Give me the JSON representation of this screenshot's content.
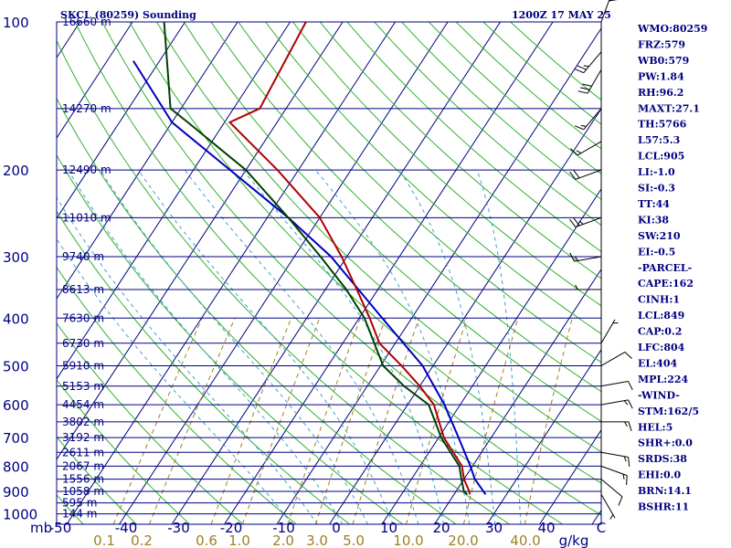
{
  "header": {
    "station": "SKCL (80259) Sounding",
    "time": "1200Z 17 MAY 25"
  },
  "indices": [
    "WMO:80259",
    "FRZ:579",
    "WB0:579",
    "PW:1.84",
    "RH:96.2",
    "MAXT:27.1",
    "TH:5766",
    "L57:5.3",
    "LCL:905",
    "LI:-1.0",
    "SI:-0.3",
    "TT:44",
    "KI:38",
    "SW:210",
    "EI:-0.5",
    "-PARCEL-",
    "CAPE:162",
    "CINH:1",
    "LCL:849",
    "CAP:0.2",
    "LFC:804",
    "EL:404",
    "MPL:224",
    "-WIND-",
    "STM:162/5",
    "HEL:5",
    "SHR+:0.0",
    "SRDS:38",
    "EHI:0.0",
    "BRN:14.1",
    "BSHR:11"
  ],
  "axes": {
    "pressure_unit": "mb",
    "temp_unit": "C",
    "mixing_ratio_unit": "g/kg"
  },
  "colors": {
    "frame": "#000080",
    "isotherm": "#000080",
    "isobar": "#000080",
    "dry_adiabat": "#30b030",
    "moist_adiabat": "#40a0d0",
    "mixing_ratio": "#a08020",
    "temperature": "#b00000",
    "dewpoint": "#004000",
    "parcel": "#0000c0"
  },
  "chart_data": {
    "type": "skew-t log-p sounding",
    "pressure_ticks": [
      "100",
      "200",
      "300",
      "400",
      "500",
      "600",
      "700",
      "800",
      "900",
      "1000"
    ],
    "temperature_ticks": [
      "-50",
      "-40",
      "-30",
      "-20",
      "-10",
      "0",
      "10",
      "20",
      "30",
      "40",
      "C"
    ],
    "mixing_ratio_ticks": [
      "0.1",
      "0.2",
      "0.6",
      "1.0",
      "2.0",
      "3.0",
      "5.0",
      "10.0",
      "20.0",
      "40.0"
    ],
    "height_levels": [
      {
        "p": 100,
        "label": "16660 m"
      },
      {
        "p": 150,
        "label": "14270 m"
      },
      {
        "p": 200,
        "label": "12490 m"
      },
      {
        "p": 250,
        "label": "11010 m"
      },
      {
        "p": 300,
        "label": "9740 m"
      },
      {
        "p": 350,
        "label": "8613 m"
      },
      {
        "p": 400,
        "label": "7630 m"
      },
      {
        "p": 450,
        "label": "6730 m"
      },
      {
        "p": 500,
        "label": "5910 m"
      },
      {
        "p": 550,
        "label": "5153 m"
      },
      {
        "p": 600,
        "label": "4454 m"
      },
      {
        "p": 650,
        "label": "3802 m"
      },
      {
        "p": 700,
        "label": "3192 m"
      },
      {
        "p": 750,
        "label": "2611 m"
      },
      {
        "p": 800,
        "label": "2067 m"
      },
      {
        "p": 850,
        "label": "1556 m"
      },
      {
        "p": 900,
        "label": "1058 m"
      },
      {
        "p": 950,
        "label": "595 m"
      },
      {
        "p": 1000,
        "label": "144 m"
      }
    ],
    "temperature_profile": [
      {
        "p": 913,
        "t": 23
      },
      {
        "p": 900,
        "t": 22.5
      },
      {
        "p": 850,
        "t": 20
      },
      {
        "p": 800,
        "t": 18
      },
      {
        "p": 700,
        "t": 11
      },
      {
        "p": 600,
        "t": 5
      },
      {
        "p": 550,
        "t": 0
      },
      {
        "p": 500,
        "t": -6
      },
      {
        "p": 450,
        "t": -13
      },
      {
        "p": 400,
        "t": -18
      },
      {
        "p": 350,
        "t": -24
      },
      {
        "p": 300,
        "t": -31
      },
      {
        "p": 250,
        "t": -40
      },
      {
        "p": 200,
        "t": -54
      },
      {
        "p": 160,
        "t": -69
      },
      {
        "p": 150,
        "t": -65
      },
      {
        "p": 100,
        "t": -67
      }
    ],
    "dewpoint_profile": [
      {
        "p": 913,
        "t": 22.5
      },
      {
        "p": 900,
        "t": 21.5
      },
      {
        "p": 850,
        "t": 19.5
      },
      {
        "p": 800,
        "t": 17.5
      },
      {
        "p": 700,
        "t": 10.5
      },
      {
        "p": 600,
        "t": 4
      },
      {
        "p": 550,
        "t": -3
      },
      {
        "p": 500,
        "t": -9.5
      },
      {
        "p": 450,
        "t": -14
      },
      {
        "p": 400,
        "t": -19
      },
      {
        "p": 350,
        "t": -26
      },
      {
        "p": 300,
        "t": -35
      },
      {
        "p": 250,
        "t": -46
      },
      {
        "p": 200,
        "t": -60
      },
      {
        "p": 160,
        "t": -77
      },
      {
        "p": 150,
        "t": -82
      },
      {
        "p": 100,
        "t": -94
      }
    ],
    "parcel_profile": [
      {
        "p": 913,
        "t": 26
      },
      {
        "p": 849,
        "t": 22
      },
      {
        "p": 800,
        "t": 19.6
      },
      {
        "p": 700,
        "t": 13.8
      },
      {
        "p": 600,
        "t": 7
      },
      {
        "p": 500,
        "t": -2
      },
      {
        "p": 404,
        "t": -15
      },
      {
        "p": 300,
        "t": -33
      },
      {
        "p": 250,
        "t": -46
      },
      {
        "p": 200,
        "t": -63
      },
      {
        "p": 160,
        "t": -80
      },
      {
        "p": 120,
        "t": -95
      }
    ],
    "wind_barbs": [
      {
        "p": 913,
        "dir": 150,
        "spd": 5
      },
      {
        "p": 850,
        "dir": 130,
        "spd": 10
      },
      {
        "p": 800,
        "dir": 110,
        "spd": 15
      },
      {
        "p": 750,
        "dir": 100,
        "spd": 15
      },
      {
        "p": 650,
        "dir": 90,
        "spd": 15
      },
      {
        "p": 600,
        "dir": 80,
        "spd": 15
      },
      {
        "p": 550,
        "dir": 80,
        "spd": 10
      },
      {
        "p": 500,
        "dir": 60,
        "spd": 10
      },
      {
        "p": 450,
        "dir": 30,
        "spd": 5
      },
      {
        "p": 350,
        "dir": 270,
        "spd": 5
      },
      {
        "p": 300,
        "dir": 260,
        "spd": 15
      },
      {
        "p": 250,
        "dir": 250,
        "spd": 25
      },
      {
        "p": 200,
        "dir": 250,
        "spd": 20
      },
      {
        "p": 175,
        "dir": 240,
        "spd": 15
      },
      {
        "p": 150,
        "dir": 220,
        "spd": 15
      },
      {
        "p": 125,
        "dir": 210,
        "spd": 30
      },
      {
        "p": 115,
        "dir": 220,
        "spd": 25
      },
      {
        "p": 100,
        "dir": 20,
        "spd": 50
      }
    ],
    "dry_adiabat_thetas_k": [
      -90,
      -80,
      -70,
      -60,
      -50,
      -40,
      -30,
      -20,
      -10,
      0,
      10,
      20,
      30,
      40,
      50,
      60,
      70,
      80,
      90,
      100,
      110,
      120,
      130,
      140,
      150,
      160,
      170,
      180,
      190,
      200
    ],
    "moist_adiabat_start_c": [
      -10,
      -5,
      0,
      5,
      10,
      15,
      20,
      25,
      30,
      35
    ],
    "mixing_ratios_gkg": [
      0.1,
      0.2,
      0.6,
      1.0,
      2.0,
      3.0,
      5.0,
      10.0,
      20.0,
      40.0
    ]
  }
}
